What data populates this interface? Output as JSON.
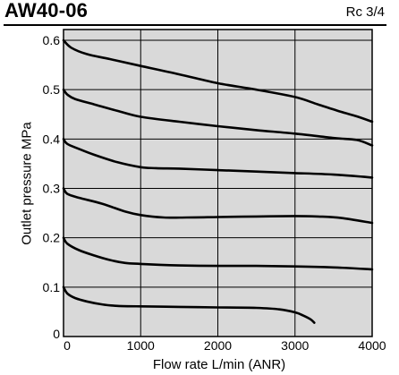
{
  "header": {
    "title": "AW40-06",
    "subtitle": "Rc 3/4"
  },
  "chart_data": {
    "type": "line",
    "title": "AW40-06",
    "subtitle": "Rc 3/4",
    "xlabel": "Flow rate  L/min (ANR)",
    "ylabel": "Outlet pressure  MPa",
    "xlim": [
      0,
      4000
    ],
    "ylim": [
      0,
      0.6
    ],
    "xticks": [
      0,
      1000,
      2000,
      3000,
      4000
    ],
    "yticks": [
      0,
      0.1,
      0.2,
      0.3,
      0.4,
      0.5,
      0.6
    ],
    "xtick_labels": [
      "0",
      "1000",
      "2000",
      "3000",
      "4000"
    ],
    "ytick_labels": [
      "0",
      "0.1",
      "0.2",
      "0.3",
      "0.4",
      "0.5",
      "0.6"
    ],
    "grid": true,
    "background": "#d9d9d9",
    "line_color": "#000000",
    "series": [
      {
        "x": [
          0,
          100,
          300,
          600,
          1000,
          1500,
          2000,
          2500,
          3000,
          3300,
          3600,
          3800,
          4000
        ],
        "y": [
          0.6,
          0.585,
          0.572,
          0.562,
          0.548,
          0.531,
          0.513,
          0.5,
          0.485,
          0.47,
          0.455,
          0.446,
          0.435
        ]
      },
      {
        "x": [
          0,
          50,
          150,
          400,
          700,
          1000,
          1500,
          2000,
          2500,
          3000,
          3500,
          3800,
          4000
        ],
        "y": [
          0.5,
          0.49,
          0.481,
          0.47,
          0.457,
          0.445,
          0.435,
          0.426,
          0.418,
          0.411,
          0.402,
          0.398,
          0.387
        ]
      },
      {
        "x": [
          0,
          50,
          200,
          400,
          700,
          1000,
          1200,
          1500,
          2000,
          2500,
          3000,
          3500,
          4000
        ],
        "y": [
          0.4,
          0.39,
          0.38,
          0.368,
          0.353,
          0.343,
          0.341,
          0.34,
          0.337,
          0.334,
          0.331,
          0.328,
          0.322
        ]
      },
      {
        "x": [
          0,
          50,
          200,
          500,
          800,
          1000,
          1300,
          1600,
          2000,
          2500,
          3000,
          3300,
          3600,
          4000
        ],
        "y": [
          0.3,
          0.289,
          0.281,
          0.269,
          0.253,
          0.246,
          0.241,
          0.241,
          0.242,
          0.243,
          0.244,
          0.243,
          0.24,
          0.23
        ]
      },
      {
        "x": [
          0,
          50,
          200,
          400,
          600,
          800,
          1000,
          1500,
          2000,
          2500,
          3000,
          3500,
          4000
        ],
        "y": [
          0.2,
          0.188,
          0.175,
          0.164,
          0.155,
          0.149,
          0.147,
          0.144,
          0.143,
          0.143,
          0.142,
          0.14,
          0.136
        ]
      },
      {
        "x": [
          0,
          50,
          150,
          300,
          500,
          700,
          1000,
          1500,
          2000,
          2500,
          2800,
          3000,
          3100,
          3200,
          3250
        ],
        "y": [
          0.1,
          0.087,
          0.078,
          0.071,
          0.065,
          0.062,
          0.061,
          0.06,
          0.059,
          0.058,
          0.055,
          0.049,
          0.043,
          0.035,
          0.028
        ]
      }
    ]
  }
}
